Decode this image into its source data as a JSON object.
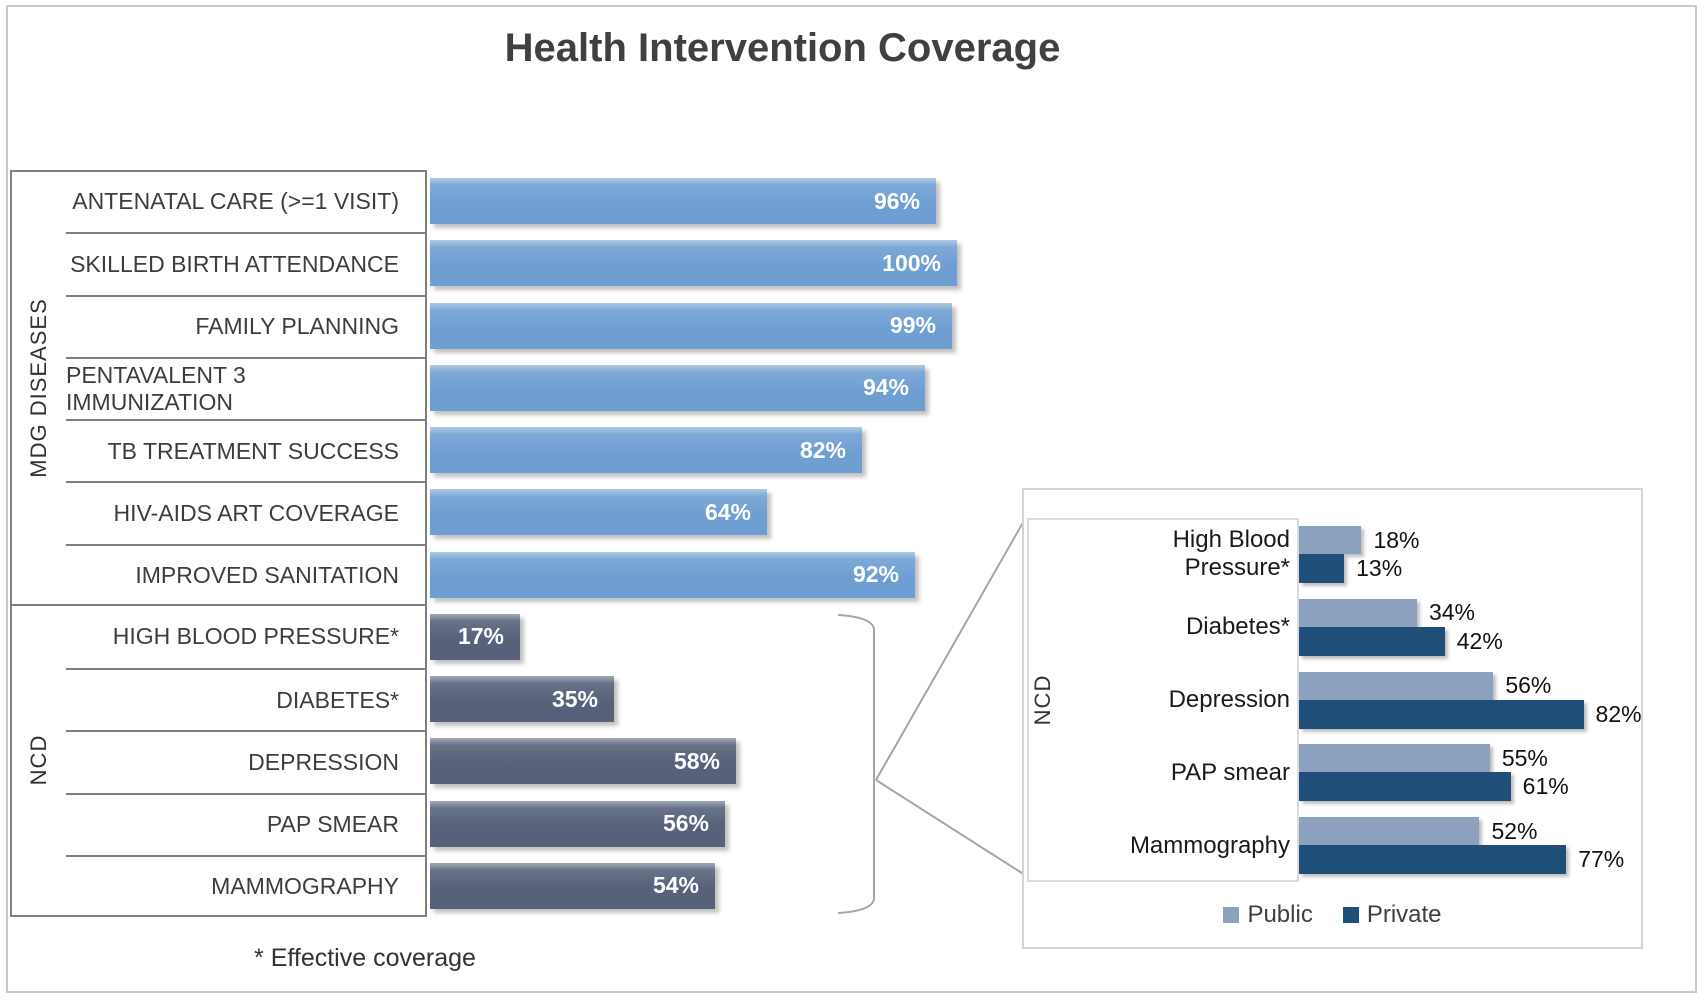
{
  "title": "Health Intervention Coverage",
  "footnote": "* Effective coverage",
  "colors": {
    "mdg_bar": "#6F9FD2",
    "ncd_bar": "#57627A",
    "public": "#8BA1BD",
    "private": "#1F4E78",
    "table_border": "#7F7F7F",
    "inset_border": "#D4D4D4",
    "connector": "#A6A6A6",
    "title_text": "#404040",
    "value_text": "#FFFFFF",
    "label_text": "#3D3D3D"
  },
  "legend": {
    "public_label": "Public",
    "private_label": "Private"
  },
  "chart_data": [
    {
      "type": "bar",
      "orientation": "horizontal",
      "unit": "%",
      "xlim": [
        0,
        100
      ],
      "value_labels": "inside-end",
      "grid": false,
      "groups": [
        {
          "label": "MDG DISEASES",
          "categories": [
            "ANTENATAL CARE (>=1 VISIT)",
            "SKILLED BIRTH ATTENDANCE",
            "FAMILY PLANNING",
            "PENTAVALENT 3 IMMUNIZATION",
            "TB TREATMENT SUCCESS",
            "HIV-AIDS ART COVERAGE",
            "IMPROVED SANITATION"
          ],
          "values": [
            96,
            100,
            99,
            94,
            82,
            64,
            92
          ]
        },
        {
          "label": "NCD",
          "categories": [
            "HIGH BLOOD PRESSURE*",
            "DIABETES*",
            "DEPRESSION",
            "PAP SMEAR",
            "MAMMOGRAPHY"
          ],
          "values": [
            17,
            35,
            58,
            56,
            54
          ]
        }
      ]
    },
    {
      "type": "bar",
      "orientation": "horizontal",
      "unit": "%",
      "group_label": "NCD",
      "legend_position": "bottom",
      "value_labels": "outside-end",
      "grid": false,
      "categories": [
        "High Blood Pressure*",
        "Diabetes*",
        "Depression",
        "PAP smear",
        "Mammography"
      ],
      "series": [
        {
          "name": "Public",
          "values": [
            18,
            34,
            56,
            55,
            52
          ]
        },
        {
          "name": "Private",
          "values": [
            13,
            42,
            82,
            61,
            77
          ]
        }
      ]
    }
  ]
}
